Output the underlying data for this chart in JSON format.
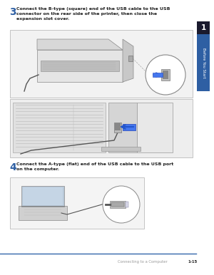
{
  "content_bg": "#ffffff",
  "step3_num": "3",
  "step3_text": "Connect the B-type (square) end of the USB cable to the USB\nconnector on the rear side of the printer, then close the\nexpansion slot cover.",
  "step4_num": "4",
  "step4_text": "Connect the A-type (flat) end of the USB cable to the USB port\non the computer.",
  "sidebar_label": "Before You Start",
  "sidebar_tab_num": "1",
  "footer_text": "Connecting to a Computer",
  "footer_page": "1-15",
  "blue_color": "#2e5fa3",
  "sidebar_bg": "#2e5fa3",
  "tab_bg": "#1a1a2e",
  "step_num_color": "#2e5fa3",
  "body_text_color": "#222222",
  "footer_line_color": "#3366aa",
  "footer_text_color": "#999999",
  "img_border": "#bbbbbb",
  "img_bg1": "#f2f2f2",
  "img_bg2": "#eeeeee",
  "img_bg3": "#f4f4f4"
}
